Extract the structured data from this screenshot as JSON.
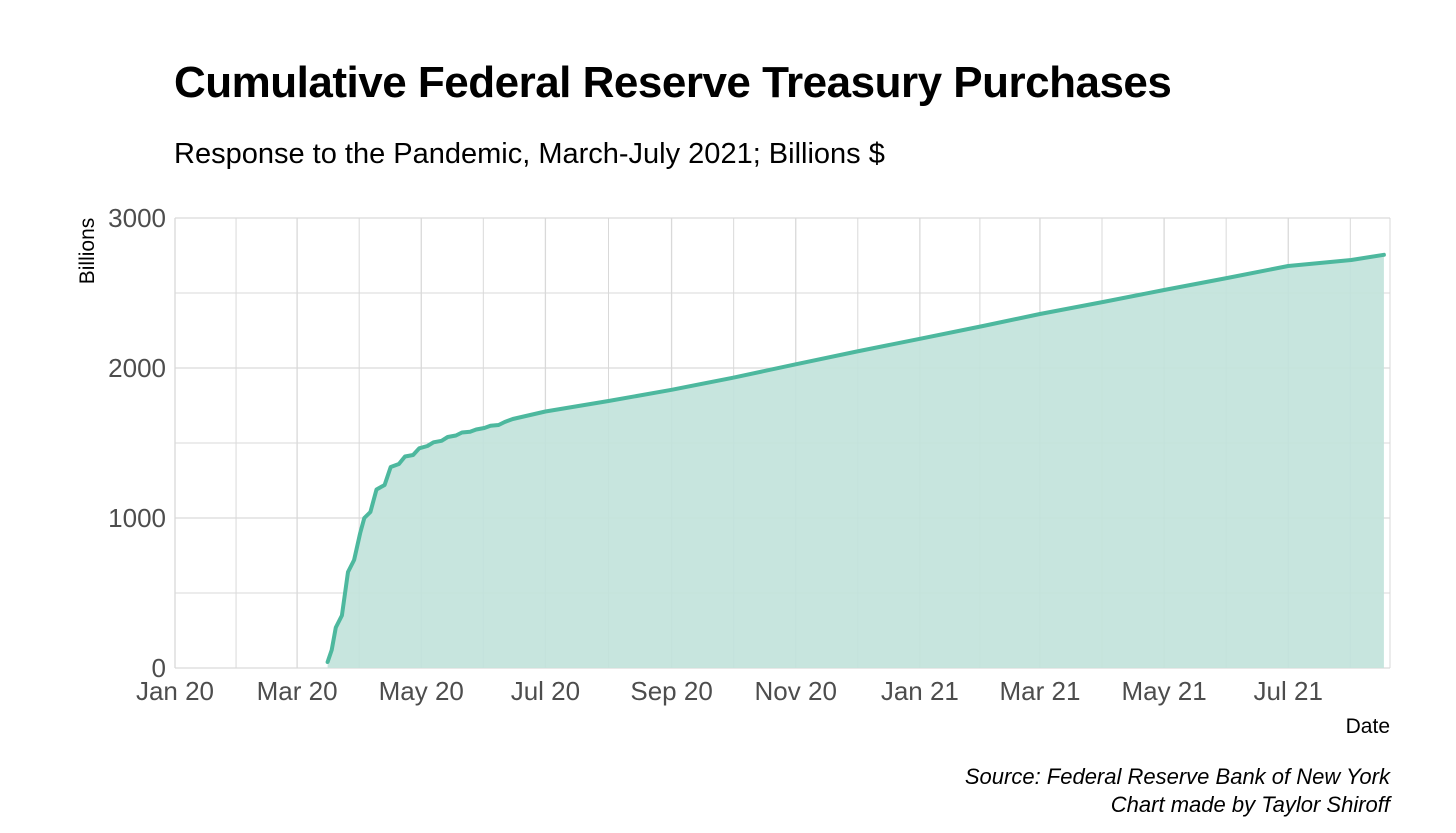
{
  "chart_data": {
    "type": "area",
    "title": "Cumulative Federal Reserve Treasury Purchases",
    "subtitle": "Response to the Pandemic, March-July 2021; Billions $",
    "xlabel": "Date",
    "ylabel": "Billions",
    "ylim": [
      0,
      3000
    ],
    "xlim": [
      "2020-01-01",
      "2021-08-20"
    ],
    "y_ticks": [
      0,
      1000,
      2000,
      3000
    ],
    "x_ticks": [
      {
        "date": "2020-01-01",
        "label": "Jan 20"
      },
      {
        "date": "2020-03-01",
        "label": "Mar 20"
      },
      {
        "date": "2020-05-01",
        "label": "May 20"
      },
      {
        "date": "2020-07-01",
        "label": "Jul 20"
      },
      {
        "date": "2020-09-01",
        "label": "Sep 20"
      },
      {
        "date": "2020-11-01",
        "label": "Nov 20"
      },
      {
        "date": "2021-01-01",
        "label": "Jan 21"
      },
      {
        "date": "2021-03-01",
        "label": "Mar 21"
      },
      {
        "date": "2021-05-01",
        "label": "May 21"
      },
      {
        "date": "2021-07-01",
        "label": "Jul 21"
      }
    ],
    "grid": true,
    "legend": "none",
    "colors": {
      "line": "#4db89e",
      "fill": "#c2e3db",
      "grid": "#d9d9d9"
    },
    "x": [
      "2020-03-16",
      "2020-03-18",
      "2020-03-20",
      "2020-03-23",
      "2020-03-26",
      "2020-03-29",
      "2020-04-01",
      "2020-04-03",
      "2020-04-06",
      "2020-04-09",
      "2020-04-13",
      "2020-04-16",
      "2020-04-20",
      "2020-04-23",
      "2020-04-27",
      "2020-04-30",
      "2020-05-04",
      "2020-05-07",
      "2020-05-11",
      "2020-05-14",
      "2020-05-18",
      "2020-05-21",
      "2020-05-25",
      "2020-05-28",
      "2020-06-01",
      "2020-06-04",
      "2020-06-08",
      "2020-06-11",
      "2020-06-15",
      "2020-07-01",
      "2020-08-01",
      "2020-09-01",
      "2020-10-01",
      "2020-11-01",
      "2020-12-01",
      "2021-01-01",
      "2021-02-01",
      "2021-03-01",
      "2021-04-01",
      "2021-05-01",
      "2021-06-01",
      "2021-07-01",
      "2021-08-01",
      "2021-08-17"
    ],
    "values": [
      40,
      120,
      270,
      350,
      640,
      720,
      900,
      1000,
      1040,
      1190,
      1220,
      1340,
      1360,
      1410,
      1420,
      1465,
      1480,
      1505,
      1515,
      1540,
      1550,
      1570,
      1575,
      1590,
      1600,
      1615,
      1620,
      1640,
      1660,
      1710,
      1780,
      1855,
      1935,
      2025,
      2110,
      2195,
      2280,
      2360,
      2440,
      2520,
      2600,
      2680,
      2720,
      2755
    ],
    "annotations": [
      "Source: Federal Reserve Bank of New York",
      "Chart made by Taylor Shiroff"
    ]
  }
}
